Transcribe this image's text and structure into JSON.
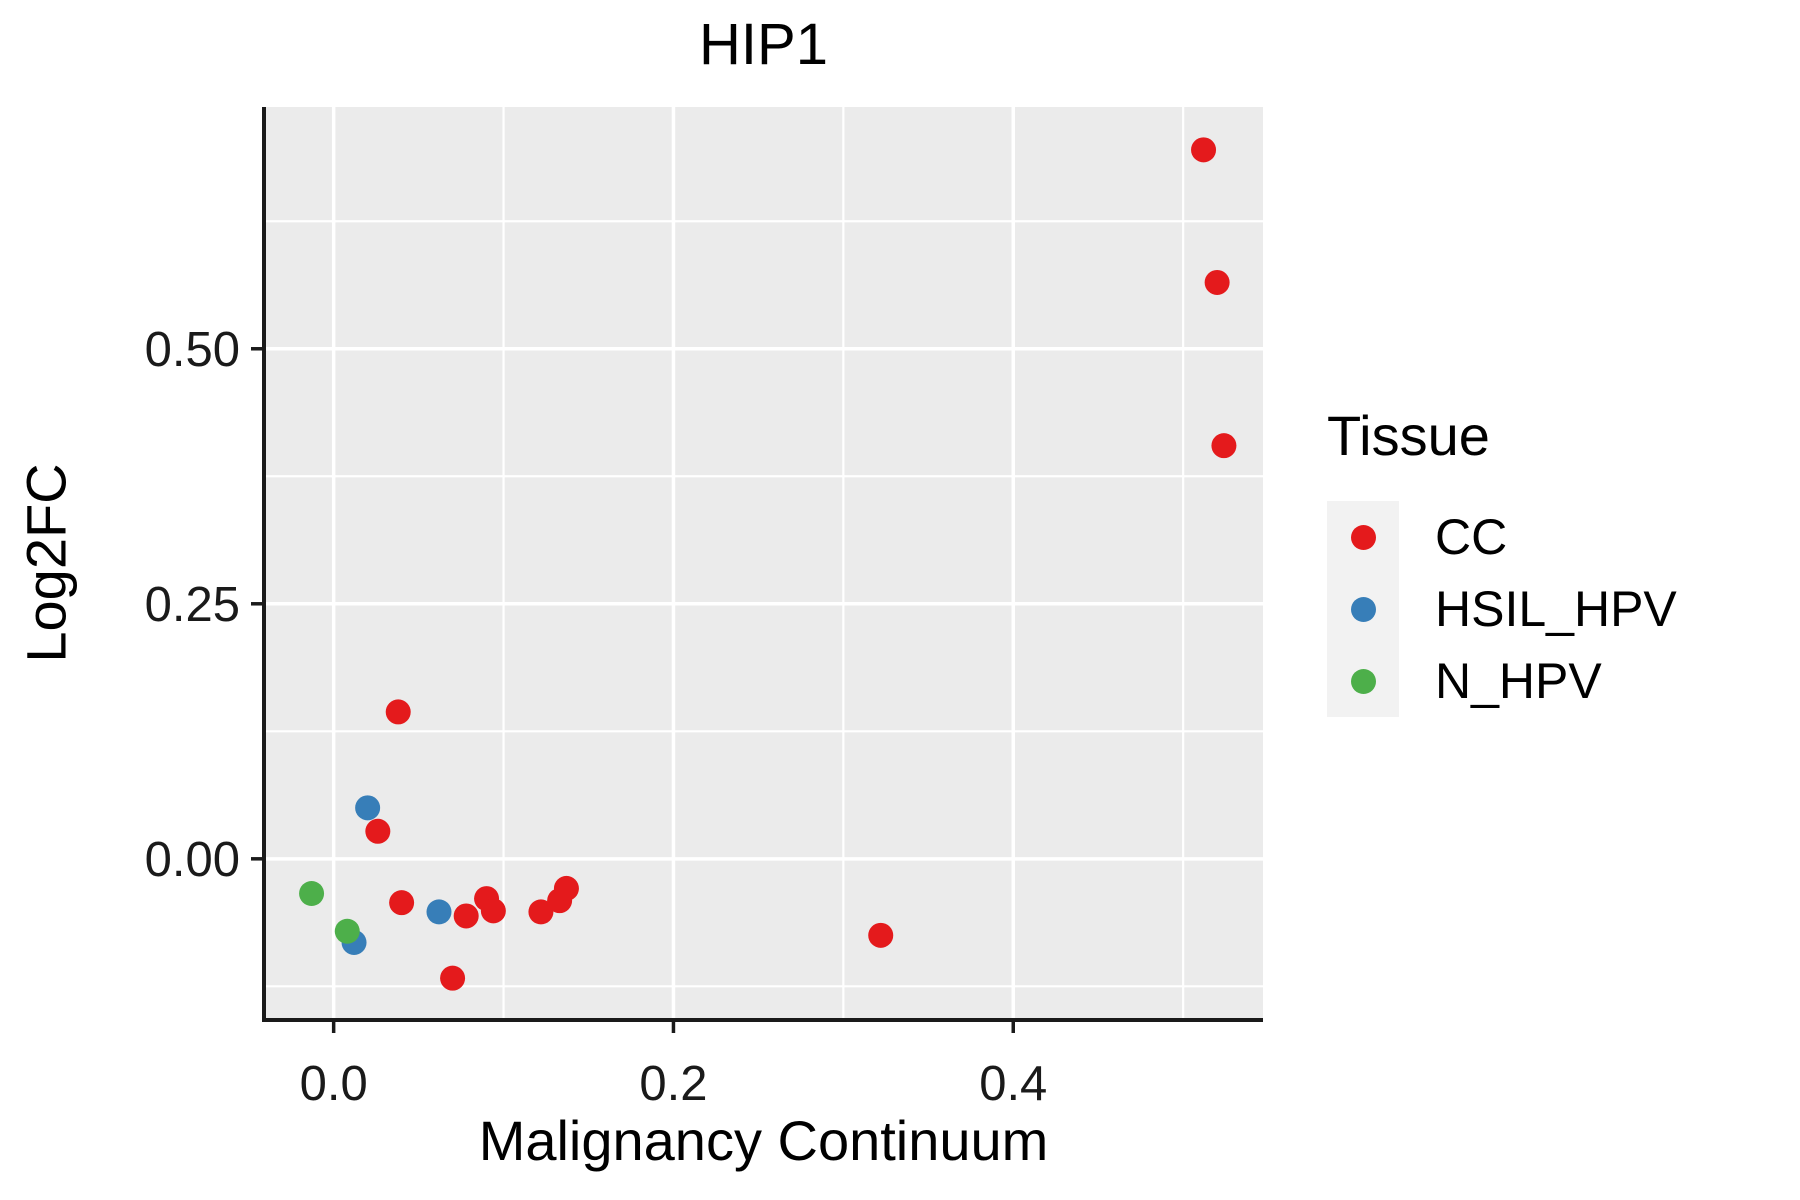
{
  "chart_data": {
    "type": "scatter",
    "title": "HIP1",
    "xlabel": "Malignancy Continuum",
    "ylabel": "Log2FC",
    "xlim": [
      -0.041,
      0.547
    ],
    "ylim": [
      -0.158,
      0.737
    ],
    "x_ticks": {
      "values": [
        0.0,
        0.2,
        0.4
      ],
      "labels": [
        "0.0",
        "0.2",
        "0.4"
      ],
      "minor": [
        0.1,
        0.3,
        0.5
      ]
    },
    "y_ticks": {
      "values": [
        0.0,
        0.25,
        0.5
      ],
      "labels": [
        "0.00",
        "0.25",
        "0.50"
      ],
      "minor": [
        -0.125,
        0.125,
        0.375,
        0.625
      ]
    },
    "grid": "white major and minor gridlines on gray panel",
    "legend_position": "right",
    "series": [
      {
        "name": "CC",
        "color": "#E41A1C",
        "points": [
          [
            0.512,
            0.695
          ],
          [
            0.52,
            0.565
          ],
          [
            0.524,
            0.405
          ],
          [
            0.038,
            0.144
          ],
          [
            0.026,
            0.027
          ],
          [
            0.04,
            -0.043
          ],
          [
            0.07,
            -0.117
          ],
          [
            0.078,
            -0.056
          ],
          [
            0.09,
            -0.039
          ],
          [
            0.094,
            -0.051
          ],
          [
            0.122,
            -0.052
          ],
          [
            0.133,
            -0.041
          ],
          [
            0.137,
            -0.029
          ],
          [
            0.322,
            -0.075
          ]
        ]
      },
      {
        "name": "HSIL_HPV",
        "color": "#377EB8",
        "points": [
          [
            0.02,
            0.05
          ],
          [
            0.012,
            -0.082
          ],
          [
            0.062,
            -0.052
          ]
        ]
      },
      {
        "name": "N_HPV",
        "color": "#4DAF4A",
        "points": [
          [
            -0.013,
            -0.034
          ],
          [
            0.008,
            -0.071
          ]
        ]
      }
    ]
  },
  "legend": {
    "title": "Tissue",
    "items": [
      {
        "label": "CC",
        "color": "#E41A1C"
      },
      {
        "label": "HSIL_HPV",
        "color": "#377EB8"
      },
      {
        "label": "N_HPV",
        "color": "#4DAF4A"
      }
    ]
  },
  "colors": {
    "page_background": "#FFFFFF",
    "panel_background": "#EBEBEB",
    "grid": "#FFFFFF",
    "axis": "#1A1A1A",
    "tick_label": "#1A1A1A",
    "legend_key_background": "#F2F2F2"
  }
}
